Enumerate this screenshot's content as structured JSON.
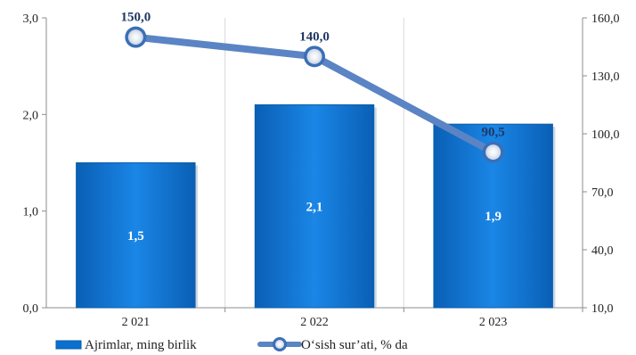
{
  "chart_data": {
    "type": "bar",
    "categories": [
      "2 021",
      "2 022",
      "2 023"
    ],
    "series": [
      {
        "name": "Ajrimlar, ming birlik",
        "type": "bar",
        "axis": "left",
        "values": [
          1.5,
          2.1,
          1.9
        ],
        "labels": [
          "1,5",
          "2,1",
          "1,9"
        ],
        "color": "#0a6fce"
      },
      {
        "name": "O‘sish sur’ati, % da",
        "type": "line",
        "axis": "right",
        "values": [
          150.0,
          140.0,
          90.5
        ],
        "labels": [
          "150,0",
          "140,0",
          "90,5"
        ],
        "color": "#5b84c4"
      }
    ],
    "y_left": {
      "min": 0,
      "max": 3,
      "ticks": [
        0,
        1,
        2,
        3
      ],
      "tick_labels": [
        "0,0",
        "1,0",
        "2,0",
        "3,0"
      ]
    },
    "y_right": {
      "min": 10,
      "max": 160,
      "ticks": [
        10,
        40,
        70,
        100,
        130,
        160
      ],
      "tick_labels": [
        "10,0",
        "40,0",
        "70,0",
        "100,0",
        "130,0",
        "160,0"
      ]
    },
    "grid": "vertical",
    "legend": "bottom-left"
  }
}
